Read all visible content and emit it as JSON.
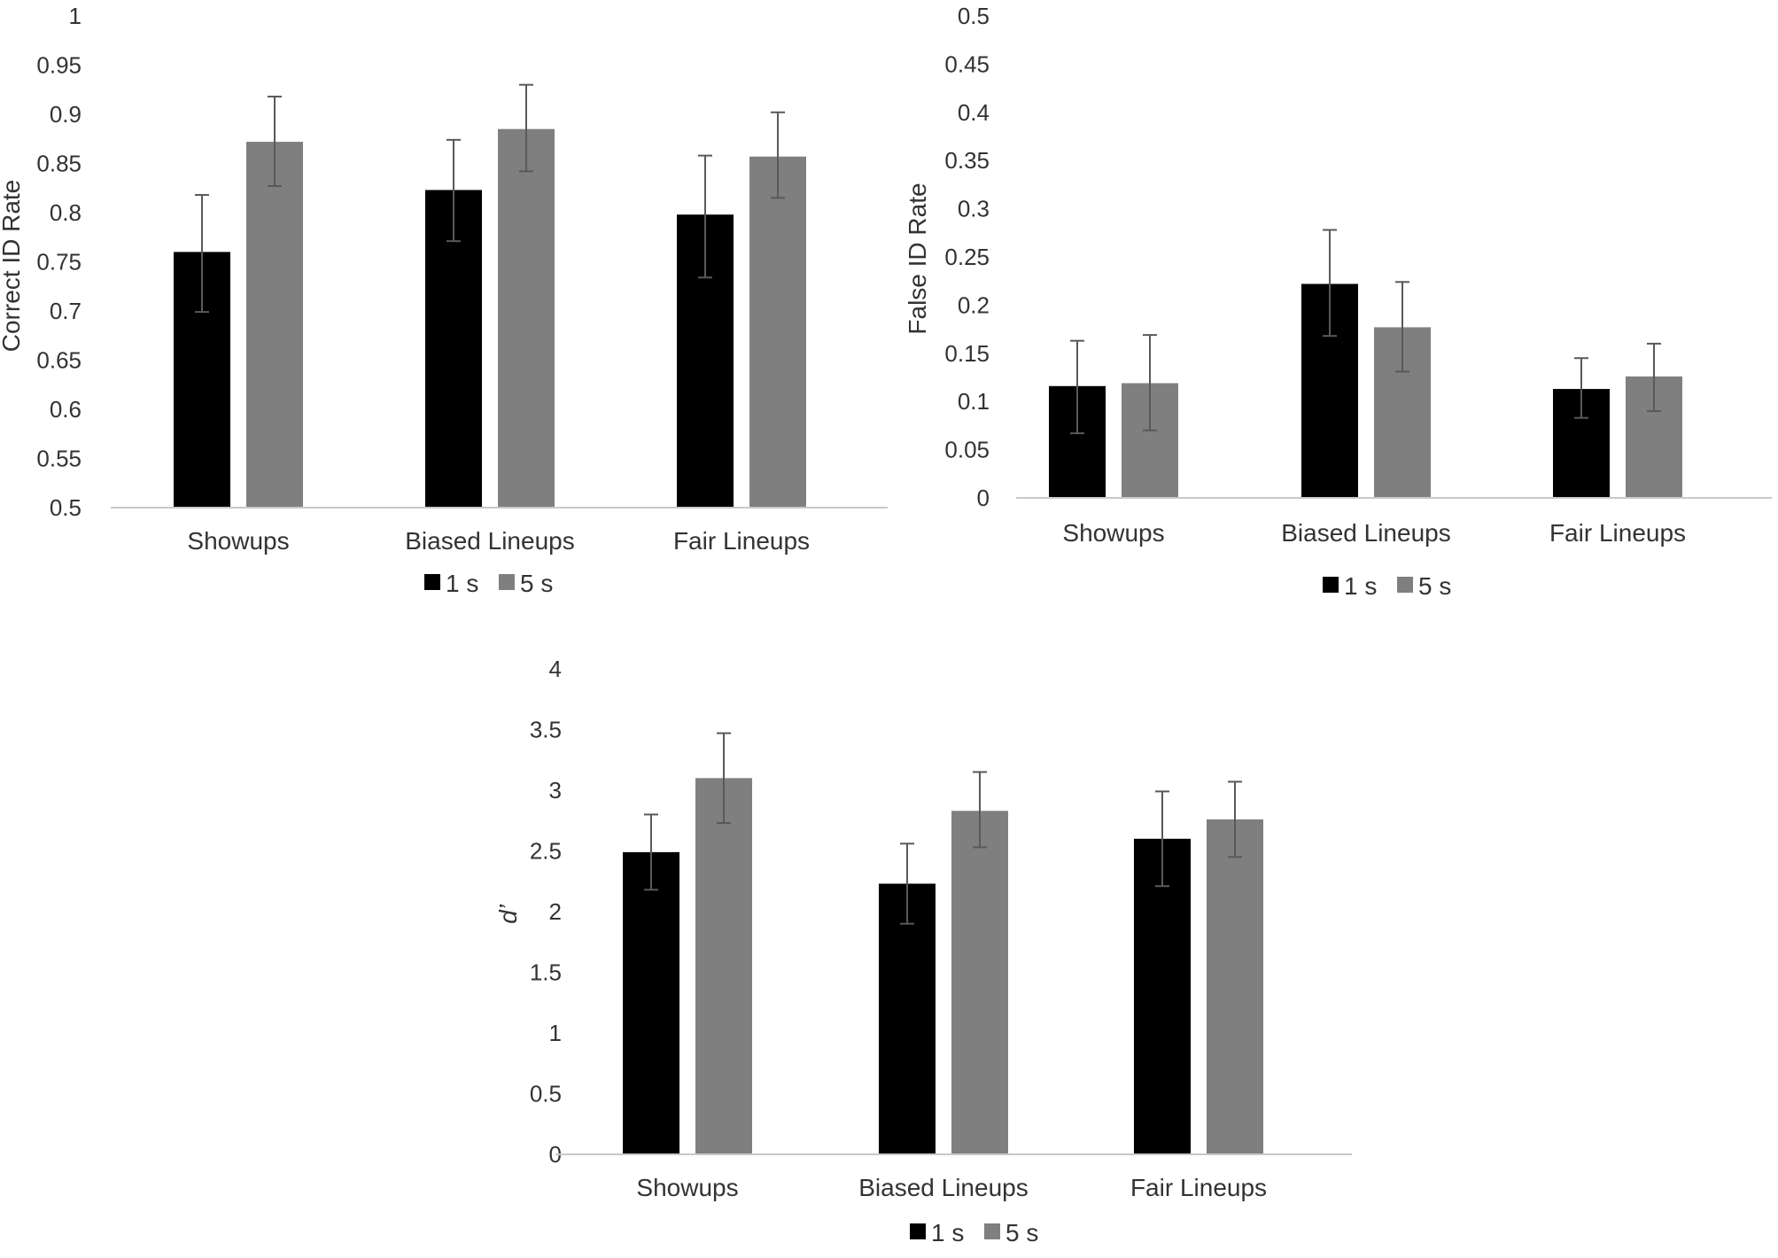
{
  "chart_data": [
    {
      "type": "bar",
      "title": "",
      "xlabel": "",
      "ylabel": "Correct ID Rate",
      "ylim": [
        0.5,
        1
      ],
      "yticks": [
        "0.5",
        "0.55",
        "0.6",
        "0.65",
        "0.7",
        "0.75",
        "0.8",
        "0.85",
        "0.9",
        "0.95",
        "1"
      ],
      "categories": [
        "Showups",
        "Biased Lineups",
        "Fair Lineups"
      ],
      "series": [
        {
          "name": "1 s",
          "color": "#000000",
          "values": [
            0.76,
            0.823,
            0.798
          ],
          "err_low": [
            0.699,
            0.771,
            0.734
          ],
          "err_high": [
            0.818,
            0.874,
            0.858
          ]
        },
        {
          "name": "5 s",
          "color": "#7f7f7f",
          "values": [
            0.872,
            0.885,
            0.857
          ],
          "err_low": [
            0.827,
            0.842,
            0.815
          ],
          "err_high": [
            0.918,
            0.93,
            0.902
          ]
        }
      ],
      "legend": "bottom"
    },
    {
      "type": "bar",
      "title": "",
      "xlabel": "",
      "ylabel": "False ID Rate",
      "ylim": [
        0,
        0.5
      ],
      "yticks": [
        "0",
        "0.05",
        "0.1",
        "0.15",
        "0.2",
        "0.25",
        "0.3",
        "0.35",
        "0.4",
        "0.45",
        "0.5"
      ],
      "categories": [
        "Showups",
        "Biased Lineups",
        "Fair Lineups"
      ],
      "series": [
        {
          "name": "1 s",
          "color": "#000000",
          "values": [
            0.116,
            0.222,
            0.113
          ],
          "err_low": [
            0.067,
            0.168,
            0.083
          ],
          "err_high": [
            0.163,
            0.278,
            0.145
          ]
        },
        {
          "name": "5 s",
          "color": "#7f7f7f",
          "values": [
            0.119,
            0.177,
            0.126
          ],
          "err_low": [
            0.07,
            0.131,
            0.09
          ],
          "err_high": [
            0.169,
            0.224,
            0.16
          ]
        }
      ],
      "legend": "bottom"
    },
    {
      "type": "bar",
      "title": "",
      "xlabel": "",
      "ylabel": "d’",
      "ylim": [
        0,
        4
      ],
      "yticks": [
        "0",
        "0.5",
        "1",
        "1.5",
        "2",
        "2.5",
        "3",
        "3.5",
        "4"
      ],
      "categories": [
        "Showups",
        "Biased Lineups",
        "Fair Lineups"
      ],
      "series": [
        {
          "name": "1 s",
          "color": "#000000",
          "values": [
            2.49,
            2.23,
            2.6
          ],
          "err_low": [
            2.18,
            1.9,
            2.21
          ],
          "err_high": [
            2.8,
            2.56,
            2.99
          ]
        },
        {
          "name": "5 s",
          "color": "#7f7f7f",
          "values": [
            3.1,
            2.83,
            2.76
          ],
          "err_low": [
            2.73,
            2.53,
            2.45
          ],
          "err_high": [
            3.47,
            3.15,
            3.07
          ]
        }
      ],
      "legend": "bottom"
    }
  ]
}
